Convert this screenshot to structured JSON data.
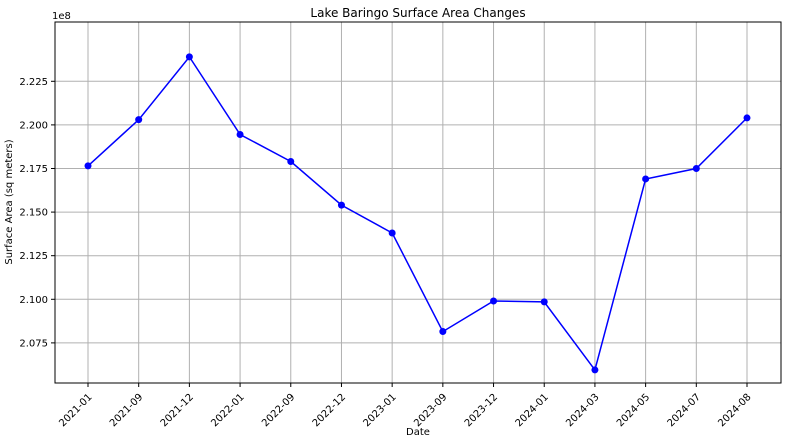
{
  "chart_data": {
    "type": "line",
    "title": "Lake Baringo Surface Area Changes",
    "xlabel": "Date",
    "ylabel": "Surface Area (sq meters)",
    "y_offset_label": "1e8",
    "categories": [
      "2021-01",
      "2021-09",
      "2021-12",
      "2022-01",
      "2022-09",
      "2022-12",
      "2023-01",
      "2023-09",
      "2023-12",
      "2024-01",
      "2024-03",
      "2024-05",
      "2024-07",
      "2024-08"
    ],
    "series": [
      {
        "values": [
          217.65,
          220.3,
          223.9,
          219.45,
          217.9,
          215.4,
          213.8,
          208.15,
          209.9,
          209.85,
          205.95,
          216.9,
          217.5,
          220.4
        ],
        "color": "#0000ff"
      }
    ],
    "ylim": [
      205.2,
      225.9
    ],
    "yticks": [
      207.5,
      210.0,
      212.5,
      215.0,
      217.5,
      220.0,
      222.5
    ],
    "ytick_labels": [
      "2.075",
      "2.100",
      "2.125",
      "2.150",
      "2.175",
      "2.200",
      "2.225"
    ],
    "grid": true,
    "legend": "none"
  }
}
